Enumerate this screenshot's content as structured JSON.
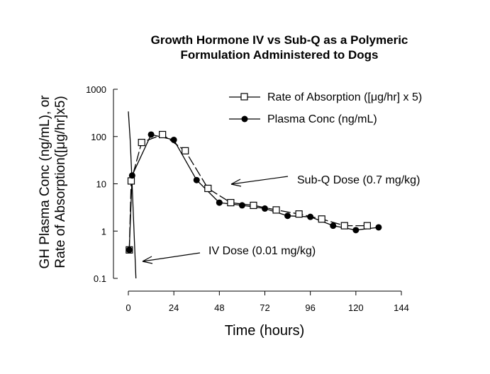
{
  "chart_data": {
    "type": "line",
    "title": [
      "Growth Hormone IV vs Sub-Q as a Polymeric",
      "Formulation Administered to Dogs"
    ],
    "ylabel": [
      "GH Plasma Conc (ng/mL), or",
      "Rate of Absorption([μg/hr]x5)"
    ],
    "xlabel": "Time (hours)",
    "xlim": [
      0,
      144
    ],
    "ylim": [
      0.1,
      1000
    ],
    "yscale": "log",
    "xticks": [
      0,
      24,
      48,
      72,
      96,
      120,
      144
    ],
    "xtick_labels": [
      "0",
      "24",
      "48",
      "72",
      "96",
      "120",
      "144"
    ],
    "yticks": [
      0.1,
      1,
      10,
      100,
      1000
    ],
    "ytick_labels": [
      "0.1",
      "1",
      "10",
      "100",
      "1000"
    ],
    "grid": false,
    "legend_position": "top-right",
    "series": [
      {
        "name": "Rate of Absorption ([μg/hr] x 5)",
        "marker": "square-open",
        "dashed": true,
        "x": [
          0.5,
          1.5,
          7,
          18,
          30,
          42,
          54,
          66,
          78,
          90,
          102,
          114,
          126
        ],
        "y": [
          0.4,
          11.5,
          75,
          110,
          50,
          8,
          4,
          3.5,
          2.8,
          2.3,
          1.8,
          1.3,
          1.3
        ]
      },
      {
        "name": "Plasma Conc (ng/mL)",
        "marker": "circle-filled",
        "dashed": false,
        "x": [
          0.5,
          2,
          12,
          24,
          36,
          48,
          60,
          72,
          84,
          96,
          108,
          120,
          132
        ],
        "y": [
          0.4,
          15,
          110,
          85,
          12,
          4,
          3.5,
          3,
          2.1,
          2,
          1.3,
          1.05,
          1.2
        ]
      },
      {
        "name": "IV Dose curve",
        "marker": "none",
        "dashed": false,
        "x": [
          0,
          1,
          2,
          3,
          4
        ],
        "y": [
          340,
          80,
          10,
          1,
          0.1
        ]
      }
    ],
    "annotations": [
      {
        "text": "Sub-Q Dose (0.7 mg/kg)",
        "x": 85,
        "y": 10,
        "arrow_to": {
          "x": 54,
          "y": 8.5
        }
      },
      {
        "text": "IV Dose (0.01 mg/kg)",
        "x": 42,
        "y": 0.42,
        "arrow_to": {
          "x": 7,
          "y": 0.24
        }
      }
    ]
  }
}
